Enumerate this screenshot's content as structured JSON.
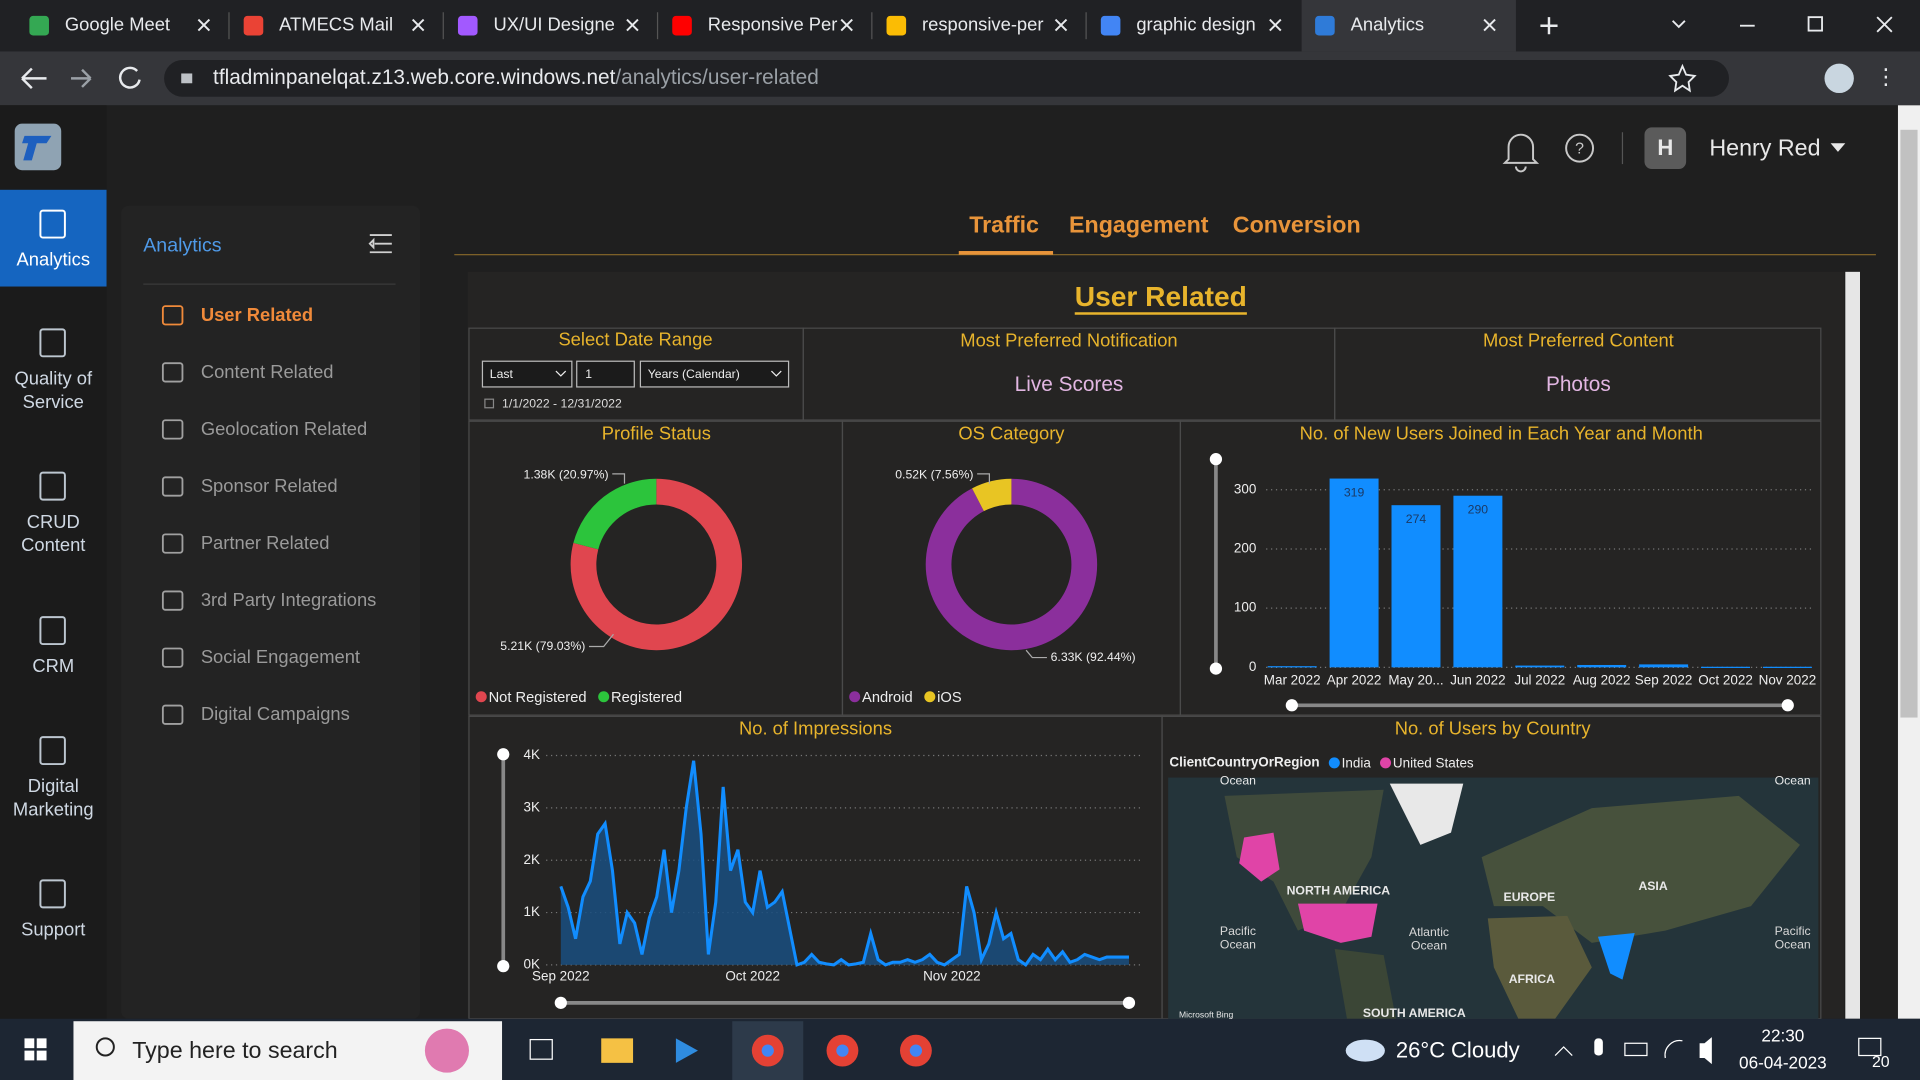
{
  "browser": {
    "tabs": [
      "Google Meet",
      "ATMECS Mail",
      "UX/UI Designe",
      "Responsive Per",
      "responsive-per",
      "graphic design",
      "Analytics"
    ],
    "url": {
      "host": "tfladminpanelqat.z13.web.core.windows.net",
      "path": "/analytics/user-related"
    }
  },
  "app": {
    "user": {
      "initial": "H",
      "name": "Henry Red"
    },
    "rail": [
      "Analytics",
      "Quality of Service",
      "CRUD Content",
      "CRM",
      "Digital Marketing",
      "Support"
    ],
    "menu": {
      "title": "Analytics",
      "items": [
        "User Related",
        "Content Related",
        "Geolocation Related",
        "Sponsor Related",
        "Partner Related",
        "3rd Party Integrations",
        "Social Engagement",
        "Digital Campaigns"
      ]
    },
    "tabs": [
      "Traffic",
      "Engagement",
      "Conversion"
    ]
  },
  "report": {
    "title": "User Related",
    "date_range": {
      "title": "Select Date Range",
      "period": "Last",
      "count": "1",
      "unit": "Years (Calendar)",
      "range": "1/1/2022 - 12/31/2022"
    },
    "notification": {
      "title": "Most Preferred Notification",
      "value": "Live Scores"
    },
    "content": {
      "title": "Most Preferred Content",
      "value": "Photos"
    },
    "profile_status": {
      "type": "pie",
      "title": "Profile Status",
      "categories": [
        "Not Registered",
        "Registered"
      ],
      "values": [
        5210,
        1380
      ],
      "value_labels": [
        "5.21K (79.03%)",
        "1.38K (20.97%)"
      ],
      "colors": [
        "#e0464f",
        "#2cc43c"
      ]
    },
    "os_category": {
      "type": "pie",
      "title": "OS Category",
      "categories": [
        "Android",
        "iOS"
      ],
      "values": [
        6330,
        520
      ],
      "value_labels": [
        "6.33K (92.44%)",
        "0.52K (7.56%)"
      ],
      "colors": [
        "#8b2f9c",
        "#e8c523"
      ]
    },
    "new_users": {
      "type": "bar",
      "title": "No. of New Users Joined in Each Year and Month",
      "categories": [
        "Mar 2022",
        "Apr 2022",
        "May 20...",
        "Jun 2022",
        "Jul 2022",
        "Aug 2022",
        "Sep 2022",
        "Oct 2022",
        "Nov 2022"
      ],
      "values": [
        2,
        319,
        274,
        290,
        3,
        4,
        5,
        1,
        1
      ],
      "color": "#118dff",
      "ylim": [
        0,
        320
      ],
      "yticks": [
        0,
        100,
        200,
        300
      ],
      "grid": true
    },
    "impressions": {
      "type": "line",
      "title": "No. of Impressions",
      "values": [
        1500,
        1100,
        500,
        1300,
        1600,
        2500,
        2700,
        1800,
        400,
        1000,
        800,
        200,
        900,
        1300,
        2200,
        1000,
        1800,
        3000,
        3900,
        2500,
        200,
        1200,
        3400,
        1800,
        2200,
        1200,
        1000,
        1800,
        1100,
        1200,
        1400,
        700,
        0,
        50,
        200,
        50,
        20,
        0,
        100,
        0,
        20,
        50,
        600,
        100,
        0,
        50,
        50,
        100,
        50,
        100,
        200,
        50,
        0,
        100,
        200,
        1500,
        1000,
        100,
        400,
        1000,
        500,
        600,
        100,
        0,
        200,
        100,
        300,
        100,
        250,
        50,
        100,
        200,
        150,
        100,
        150,
        150,
        150,
        150
      ],
      "color": "#118dff",
      "xlim": [
        0,
        77
      ],
      "xticks": [
        {
          "value": 0,
          "label": "Sep 2022"
        },
        {
          "value": 26,
          "label": "Oct 2022"
        },
        {
          "value": 53,
          "label": "Nov 2022"
        }
      ],
      "ylim": [
        0,
        4000
      ],
      "yticks": [
        {
          "value": 0,
          "label": "0K"
        },
        {
          "value": 1000,
          "label": "1K"
        },
        {
          "value": 2000,
          "label": "2K"
        },
        {
          "value": 3000,
          "label": "3K"
        },
        {
          "value": 4000,
          "label": "4K"
        }
      ],
      "grid": true
    },
    "users_by_country": {
      "title": "No. of Users by Country",
      "legend_title": "ClientCountryOrRegion",
      "legend": [
        "India",
        "United States"
      ],
      "legend_colors": [
        "#118dff",
        "#e044a7"
      ],
      "map_labels": [
        "Ocean",
        "Ocean",
        "NORTH AMERICA",
        "EUROPE",
        "ASIA",
        "Pacific Ocean",
        "Atlantic Ocean",
        "Pacific Ocean",
        "AFRICA",
        "SOUTH AMERICA",
        "Microsoft Bing"
      ]
    }
  },
  "taskbar": {
    "search": "Type here to search",
    "temperature": "26°C",
    "weather": "Cloudy",
    "time": "22:30",
    "date": "06-04-2023",
    "notifications": "20"
  }
}
